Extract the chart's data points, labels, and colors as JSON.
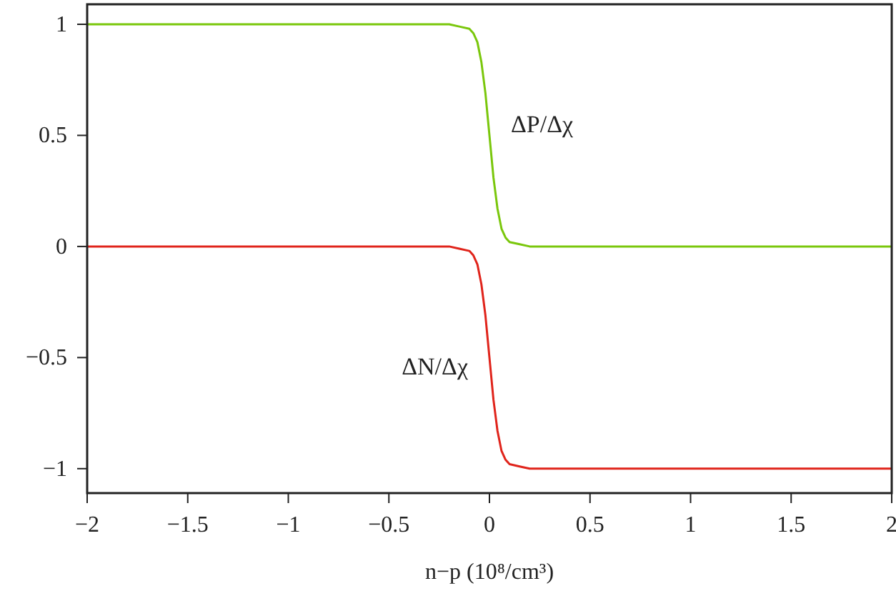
{
  "chart_data": {
    "type": "line",
    "xlabel": "n−p (10⁸/cm³)",
    "x": [
      -2,
      -1,
      -0.5,
      -0.3,
      -0.2,
      -0.15,
      -0.1,
      -0.08,
      -0.06,
      -0.04,
      -0.02,
      0,
      0.02,
      0.04,
      0.06,
      0.08,
      0.1,
      0.15,
      0.2,
      0.3,
      0.5,
      1,
      2
    ],
    "series": [
      {
        "name": "ΔP/Δχ",
        "color": "#7ac70c",
        "values": [
          1,
          1,
          1,
          1,
          1,
          0.99,
          0.98,
          0.96,
          0.92,
          0.83,
          0.69,
          0.5,
          0.31,
          0.17,
          0.08,
          0.04,
          0.02,
          0.01,
          0,
          0,
          0,
          0,
          0
        ]
      },
      {
        "name": "ΔN/Δχ",
        "color": "#e0241b",
        "values": [
          0,
          0,
          0,
          0,
          0,
          -0.01,
          -0.02,
          -0.04,
          -0.08,
          -0.17,
          -0.31,
          -0.5,
          -0.69,
          -0.83,
          -0.92,
          -0.96,
          -0.98,
          -0.99,
          -1,
          -1,
          -1,
          -1,
          -1
        ]
      }
    ],
    "xlim": [
      -2,
      2
    ],
    "ylim": [
      -1.11,
      1.09
    ],
    "xticks": [
      {
        "value": -2,
        "label": "−2"
      },
      {
        "value": -1.5,
        "label": "−1.5"
      },
      {
        "value": -1,
        "label": "−1"
      },
      {
        "value": -0.5,
        "label": "−0.5"
      },
      0,
      0.5,
      1,
      1.5,
      2
    ],
    "yticks": [
      {
        "value": -1,
        "label": "−1"
      },
      {
        "value": -0.5,
        "label": "−0.5"
      },
      0,
      0.5,
      1
    ],
    "grid": false,
    "marker": "none",
    "line_style": "solid"
  }
}
